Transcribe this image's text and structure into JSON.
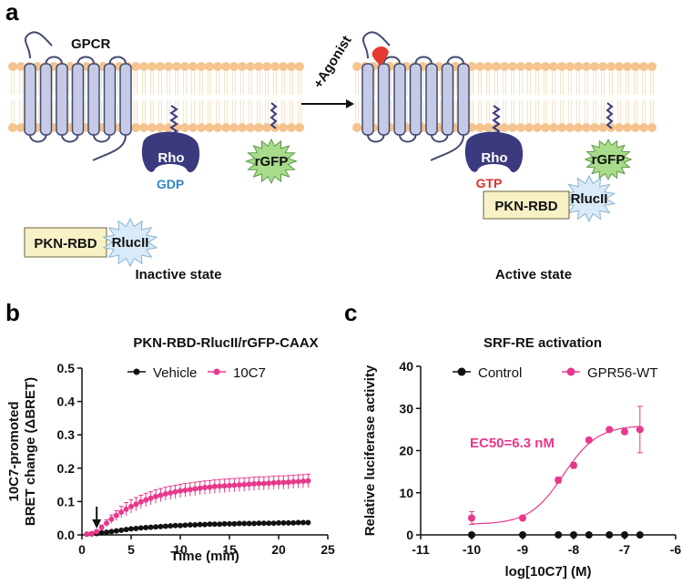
{
  "panel_a": {
    "letter": "a",
    "gpcr_label": "GPCR",
    "agonist_label": "+Agonist",
    "rho_label_left": "Rho",
    "gdp_label": "GDP",
    "rgfp_label_left": "rGFP",
    "pkn_label_left": "PKN-RBD",
    "rlucii_label_left": "RlucII",
    "inactive_caption": "Inactive state",
    "rho_label_right": "Rho",
    "gtp_label": "GTP",
    "rgfp_label_right": "rGFP",
    "pkn_label_right": "PKN-RBD",
    "rlucii_label_right": "RlucII",
    "active_caption": "Active state",
    "colors": {
      "membrane_head": "#f5c48e",
      "receptor_fill": "#c5cbe6",
      "receptor_stroke": "#444a6e",
      "rho_fill": "#3b3a7e",
      "gfp_fill": "#a8dc8a",
      "luc_fill": "#d9ebf8",
      "pkn_fill": "#f7f1c5",
      "gdp_color": "#2f86c8",
      "gtp_color": "#e0302c",
      "agonist_color": "#e53b2e"
    }
  },
  "chart_data": [
    {
      "panel": "b",
      "type": "scatter",
      "title": "PKN-RBD-RlucII/rGFP-CAAX",
      "xlabel": "Time (min)",
      "ylabel_line1": "10C7-promoted",
      "ylabel_line2": "BRET change (ΔBRET)",
      "xlim": [
        0,
        25
      ],
      "ylim": [
        0,
        0.5
      ],
      "xticks": [
        "0",
        "5",
        "10",
        "15",
        "20",
        "25"
      ],
      "yticks": [
        "0.0",
        "0.1",
        "0.2",
        "0.3",
        "0.4",
        "0.5"
      ],
      "legend_position": "top",
      "arrow_x": 1.5,
      "series": [
        {
          "name": "Vehicle",
          "color": "#111111",
          "x": [
            0.5,
            1.0,
            1.5,
            2.0,
            2.5,
            3.0,
            3.5,
            4.0,
            4.5,
            5.0,
            5.5,
            6.0,
            6.5,
            7.0,
            7.5,
            8.0,
            8.5,
            9.0,
            9.5,
            10.0,
            10.5,
            11.0,
            11.5,
            12.0,
            12.5,
            13.0,
            13.5,
            14.0,
            14.5,
            15.0,
            15.5,
            16.0,
            16.5,
            17.0,
            17.5,
            18.0,
            18.5,
            19.0,
            19.5,
            20.0,
            20.5,
            21.0,
            21.5,
            22.0,
            22.5,
            23.0
          ],
          "y": [
            0.002,
            0.003,
            0.004,
            0.006,
            0.008,
            0.01,
            0.012,
            0.014,
            0.016,
            0.018,
            0.019,
            0.021,
            0.022,
            0.023,
            0.024,
            0.025,
            0.026,
            0.027,
            0.028,
            0.028,
            0.029,
            0.03,
            0.03,
            0.031,
            0.031,
            0.032,
            0.032,
            0.032,
            0.033,
            0.033,
            0.033,
            0.034,
            0.034,
            0.034,
            0.034,
            0.035,
            0.035,
            0.035,
            0.035,
            0.036,
            0.036,
            0.036,
            0.036,
            0.037,
            0.037,
            0.037
          ]
        },
        {
          "name": "10C7",
          "color": "#e8388c",
          "x": [
            0.5,
            1.0,
            1.5,
            2.0,
            2.5,
            3.0,
            3.5,
            4.0,
            4.5,
            5.0,
            5.5,
            6.0,
            6.5,
            7.0,
            7.5,
            8.0,
            8.5,
            9.0,
            9.5,
            10.0,
            10.5,
            11.0,
            11.5,
            12.0,
            12.5,
            13.0,
            13.5,
            14.0,
            14.5,
            15.0,
            15.5,
            16.0,
            16.5,
            17.0,
            17.5,
            18.0,
            18.5,
            19.0,
            19.5,
            20.0,
            20.5,
            21.0,
            21.5,
            22.0,
            22.5,
            23.0
          ],
          "y": [
            0.002,
            0.004,
            0.01,
            0.022,
            0.035,
            0.047,
            0.058,
            0.068,
            0.077,
            0.085,
            0.092,
            0.099,
            0.105,
            0.11,
            0.115,
            0.119,
            0.123,
            0.126,
            0.129,
            0.132,
            0.134,
            0.136,
            0.138,
            0.14,
            0.142,
            0.143,
            0.145,
            0.146,
            0.147,
            0.148,
            0.149,
            0.15,
            0.151,
            0.152,
            0.153,
            0.154,
            0.154,
            0.155,
            0.156,
            0.157,
            0.157,
            0.158,
            0.159,
            0.16,
            0.161,
            0.162
          ],
          "error": 0.02
        }
      ]
    },
    {
      "panel": "c",
      "type": "scatter",
      "title": "SRF-RE  activation",
      "xlabel": "log[10C7] (M)",
      "ylabel": "Relative luciferase activity",
      "xlim": [
        -11,
        -6
      ],
      "ylim": [
        0,
        40
      ],
      "xticks": [
        "-11",
        "-10",
        "-9",
        "-8",
        "-7",
        "-6"
      ],
      "yticks": [
        "0",
        "10",
        "20",
        "30",
        "40"
      ],
      "legend_position": "top",
      "annotation": "EC50=6.3 nM",
      "fit": {
        "bottom": 2.5,
        "top": 26,
        "log_ec50": -8.2,
        "hill": 1.3,
        "x_from": -10,
        "x_to": -6.7
      },
      "series": [
        {
          "name": "Control",
          "color": "#111111",
          "x": [
            -10.0,
            -9.0,
            -8.3,
            -8.0,
            -7.7,
            -7.3,
            -7.0,
            -6.7
          ],
          "y": [
            0,
            0,
            0,
            0,
            0,
            0,
            0,
            0
          ]
        },
        {
          "name": "GPR56-WT",
          "color": "#e8388c",
          "x": [
            -10.0,
            -9.0,
            -8.3,
            -8.0,
            -7.7,
            -7.3,
            -7.0,
            -6.7
          ],
          "y": [
            4,
            4,
            13,
            16.5,
            22.5,
            25,
            24.5,
            25
          ],
          "error": [
            1.5,
            0.5,
            0.7,
            0.7,
            0.6,
            0.5,
            0.6,
            5.5
          ]
        }
      ]
    }
  ]
}
